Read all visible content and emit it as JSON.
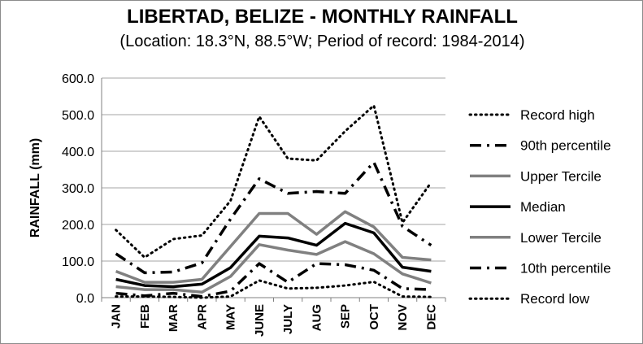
{
  "chart_data": {
    "type": "line",
    "title": "LIBERTAD, BELIZE - MONTHLY RAINFALL",
    "subtitle": "(Location: 18.3°N, 88.5°W; Period of record: 1984-2014)",
    "xlabel": "",
    "ylabel": "RAINFALL (mm)",
    "ylim": [
      0,
      600
    ],
    "yticks": [
      "0.0",
      "100.0",
      "200.0",
      "300.0",
      "400.0",
      "500.0",
      "600.0"
    ],
    "grid": true,
    "legend_position": "right",
    "categories": [
      "JAN",
      "FEB",
      "MAR",
      "APR",
      "MAY",
      "JUNE",
      "JULY",
      "AUG",
      "SEP",
      "OCT",
      "NOV",
      "DEC"
    ],
    "series": [
      {
        "name": "Record high",
        "color": "#000000",
        "style": "dotted",
        "values": [
          185,
          110,
          160,
          170,
          265,
          495,
          380,
          375,
          455,
          525,
          205,
          315
        ]
      },
      {
        "name": "90th percentile",
        "color": "#000000",
        "style": "dashdot",
        "values": [
          120,
          68,
          70,
          95,
          215,
          325,
          285,
          290,
          285,
          370,
          195,
          143
        ]
      },
      {
        "name": "Upper Tercile",
        "color": "#808080",
        "style": "solid",
        "values": [
          72,
          42,
          42,
          50,
          140,
          230,
          230,
          173,
          235,
          193,
          110,
          103
        ]
      },
      {
        "name": "Median",
        "color": "#000000",
        "style": "solid",
        "values": [
          50,
          33,
          30,
          37,
          82,
          168,
          163,
          143,
          203,
          177,
          83,
          72
        ]
      },
      {
        "name": "Lower Tercile",
        "color": "#808080",
        "style": "solid",
        "values": [
          30,
          22,
          22,
          15,
          58,
          145,
          130,
          118,
          153,
          120,
          65,
          40
        ]
      },
      {
        "name": "10th percentile",
        "color": "#000000",
        "style": "dashdot",
        "values": [
          12,
          5,
          12,
          3,
          18,
          93,
          42,
          93,
          90,
          75,
          25,
          22
        ]
      },
      {
        "name": "Record low",
        "color": "#000000",
        "style": "dotted",
        "values": [
          3,
          3,
          2,
          0,
          3,
          47,
          25,
          27,
          33,
          43,
          3,
          2
        ]
      }
    ]
  }
}
